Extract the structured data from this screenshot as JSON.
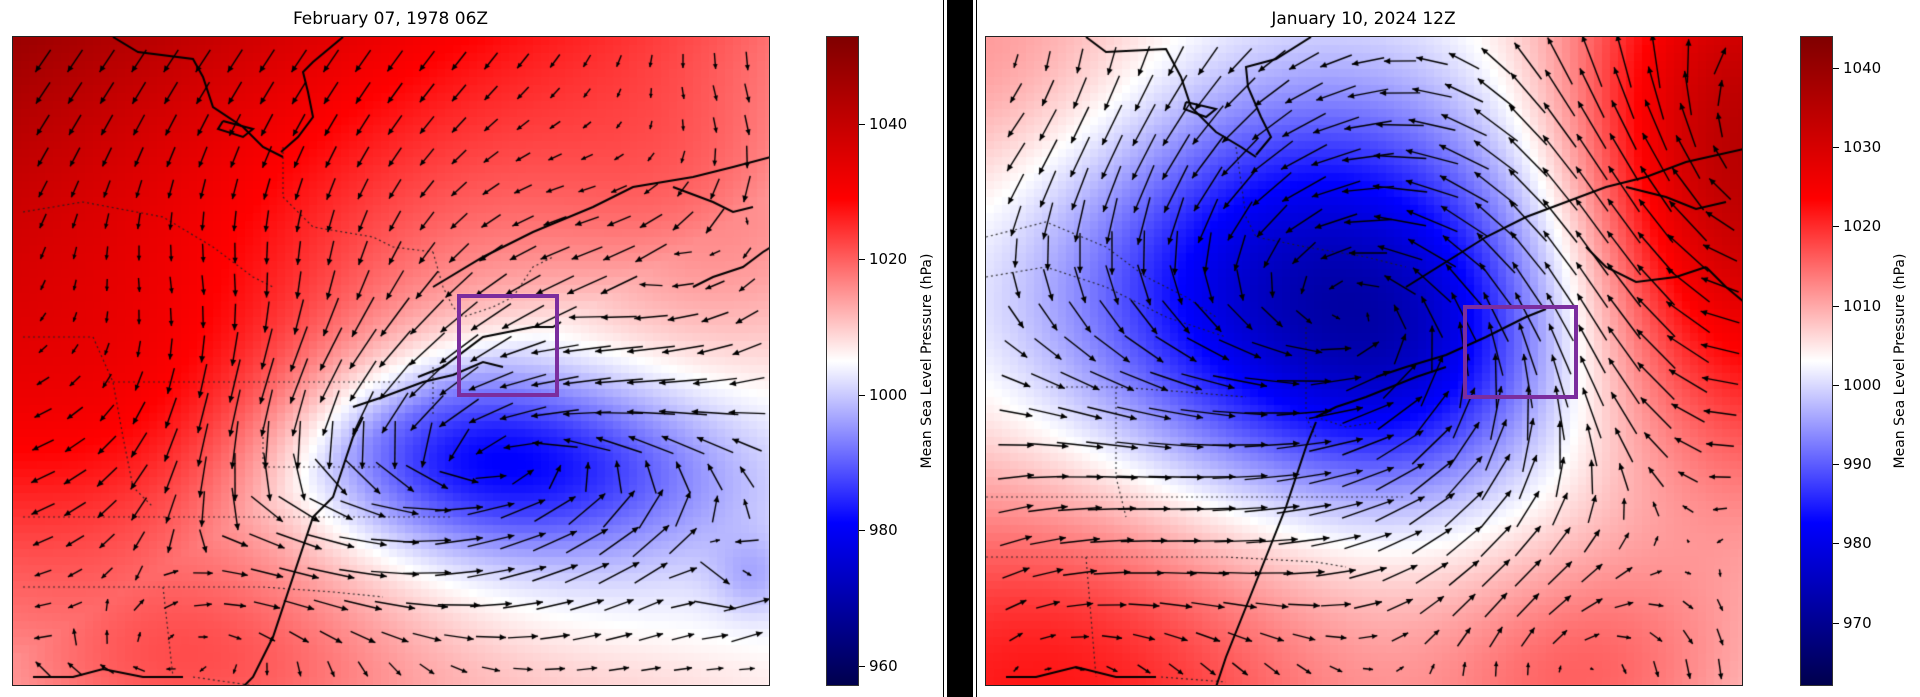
{
  "chart_data": [
    {
      "type": "heatmap",
      "title": "February 07, 1978 06Z",
      "variable": "Mean Sea Level Pressure",
      "colorbar_label": "Mean Sea Level Pressure (hPa)",
      "colormap": "seismic",
      "vmin": 957,
      "vmax": 1053,
      "colorbar_ticks": [
        960,
        980,
        1000,
        1020,
        1040
      ],
      "overlay": "wind vectors (quiver) with state/province borders and coastlines",
      "features": {
        "high_pressure": {
          "location": "northwest (Great Lakes / Ontario)",
          "approx_hPa": 1048
        },
        "low_pressure": {
          "location": "off New Jersey / Long Island coast",
          "approx_hPa": 985
        },
        "secondary_low": {
          "location": "far southeast Atlantic edge",
          "approx_hPa": 995
        }
      },
      "highlight_box": {
        "region": "Southern New England / Gulf of Maine",
        "color": "#7b2d9e"
      }
    },
    {
      "type": "heatmap",
      "title": "January 10, 2024 12Z",
      "variable": "Mean Sea Level Pressure",
      "colorbar_label": "Mean Sea Level Pressure (hPa)",
      "colormap": "seismic",
      "vmin": 962,
      "vmax": 1044,
      "colorbar_ticks": [
        970,
        980,
        990,
        1000,
        1010,
        1020,
        1030,
        1040
      ],
      "overlay": "wind vectors (quiver) with state/province borders and coastlines",
      "features": {
        "low_pressure": {
          "location": "Quebec / St. Lawrence valley into New York",
          "approx_hPa": 975
        },
        "high_pressure_east": {
          "location": "Atlantic east of Nova Scotia",
          "approx_hPa": 1030
        },
        "high_pressure_southwest": {
          "location": "Gulf coast / southeast US",
          "approx_hPa": 1018
        },
        "strong_southerly_flow": "over western Atlantic toward New England"
      },
      "highlight_box": {
        "region": "Southern New England / Gulf of Maine",
        "color": "#7b2d9e"
      }
    }
  ],
  "left_panel": {
    "title": "February 07, 1978 06Z",
    "colorbar_label": "Mean Sea Level Pressure (hPa)",
    "ticks": [
      "960",
      "980",
      "1000",
      "1020",
      "1040"
    ]
  },
  "right_panel": {
    "title": "January 10, 2024 12Z",
    "colorbar_label": "Mean Sea Level Pressure (hPa)",
    "ticks": [
      "970",
      "980",
      "990",
      "1000",
      "1010",
      "1020",
      "1030",
      "1040"
    ]
  },
  "colors": {
    "roi_box": "#7b2d9e",
    "arrow": "#000000",
    "divider": "#000000"
  }
}
